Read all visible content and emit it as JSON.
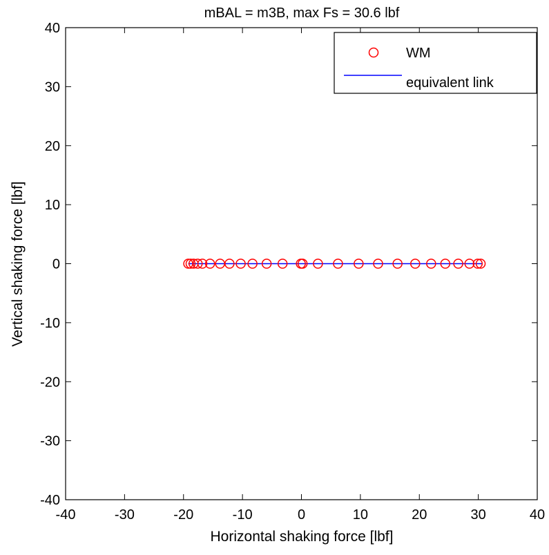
{
  "chart_data": {
    "type": "scatter",
    "title": "mBAL = m3B, max Fs = 30.6 lbf",
    "xlabel": "Horizontal shaking force [lbf]",
    "ylabel": "Vertical shaking force [lbf]",
    "xlim": [
      -40,
      40
    ],
    "ylim": [
      -40,
      40
    ],
    "xticks": [
      "-40",
      "-30",
      "-20",
      "-10",
      "0",
      "10",
      "20",
      "30",
      "40"
    ],
    "yticks": [
      "-40",
      "-30",
      "-20",
      "-10",
      "0",
      "10",
      "20",
      "30",
      "40"
    ],
    "grid": false,
    "legend_position": "top-right",
    "series": [
      {
        "name": "WM",
        "style": "circle-marker",
        "color": "#ff0000",
        "x": [
          -19.2,
          -18.8,
          -18.3,
          -17.6,
          -16.8,
          -15.5,
          -13.8,
          -12.2,
          -10.3,
          -8.3,
          -5.9,
          -3.2,
          -0.1,
          0.2,
          2.8,
          6.2,
          9.7,
          13.0,
          16.3,
          19.3,
          22.0,
          24.4,
          26.6,
          28.5,
          29.9,
          30.4
        ],
        "y": [
          0,
          0,
          0,
          0,
          0,
          0,
          0,
          0,
          0,
          0,
          0,
          0,
          0,
          0,
          0,
          0,
          0,
          0,
          0,
          0,
          0,
          0,
          0,
          0,
          0,
          0
        ]
      },
      {
        "name": "equivalent link",
        "style": "line",
        "color": "#0000ff",
        "x": [
          -19.2,
          30.6
        ],
        "y": [
          0,
          0
        ]
      }
    ]
  }
}
